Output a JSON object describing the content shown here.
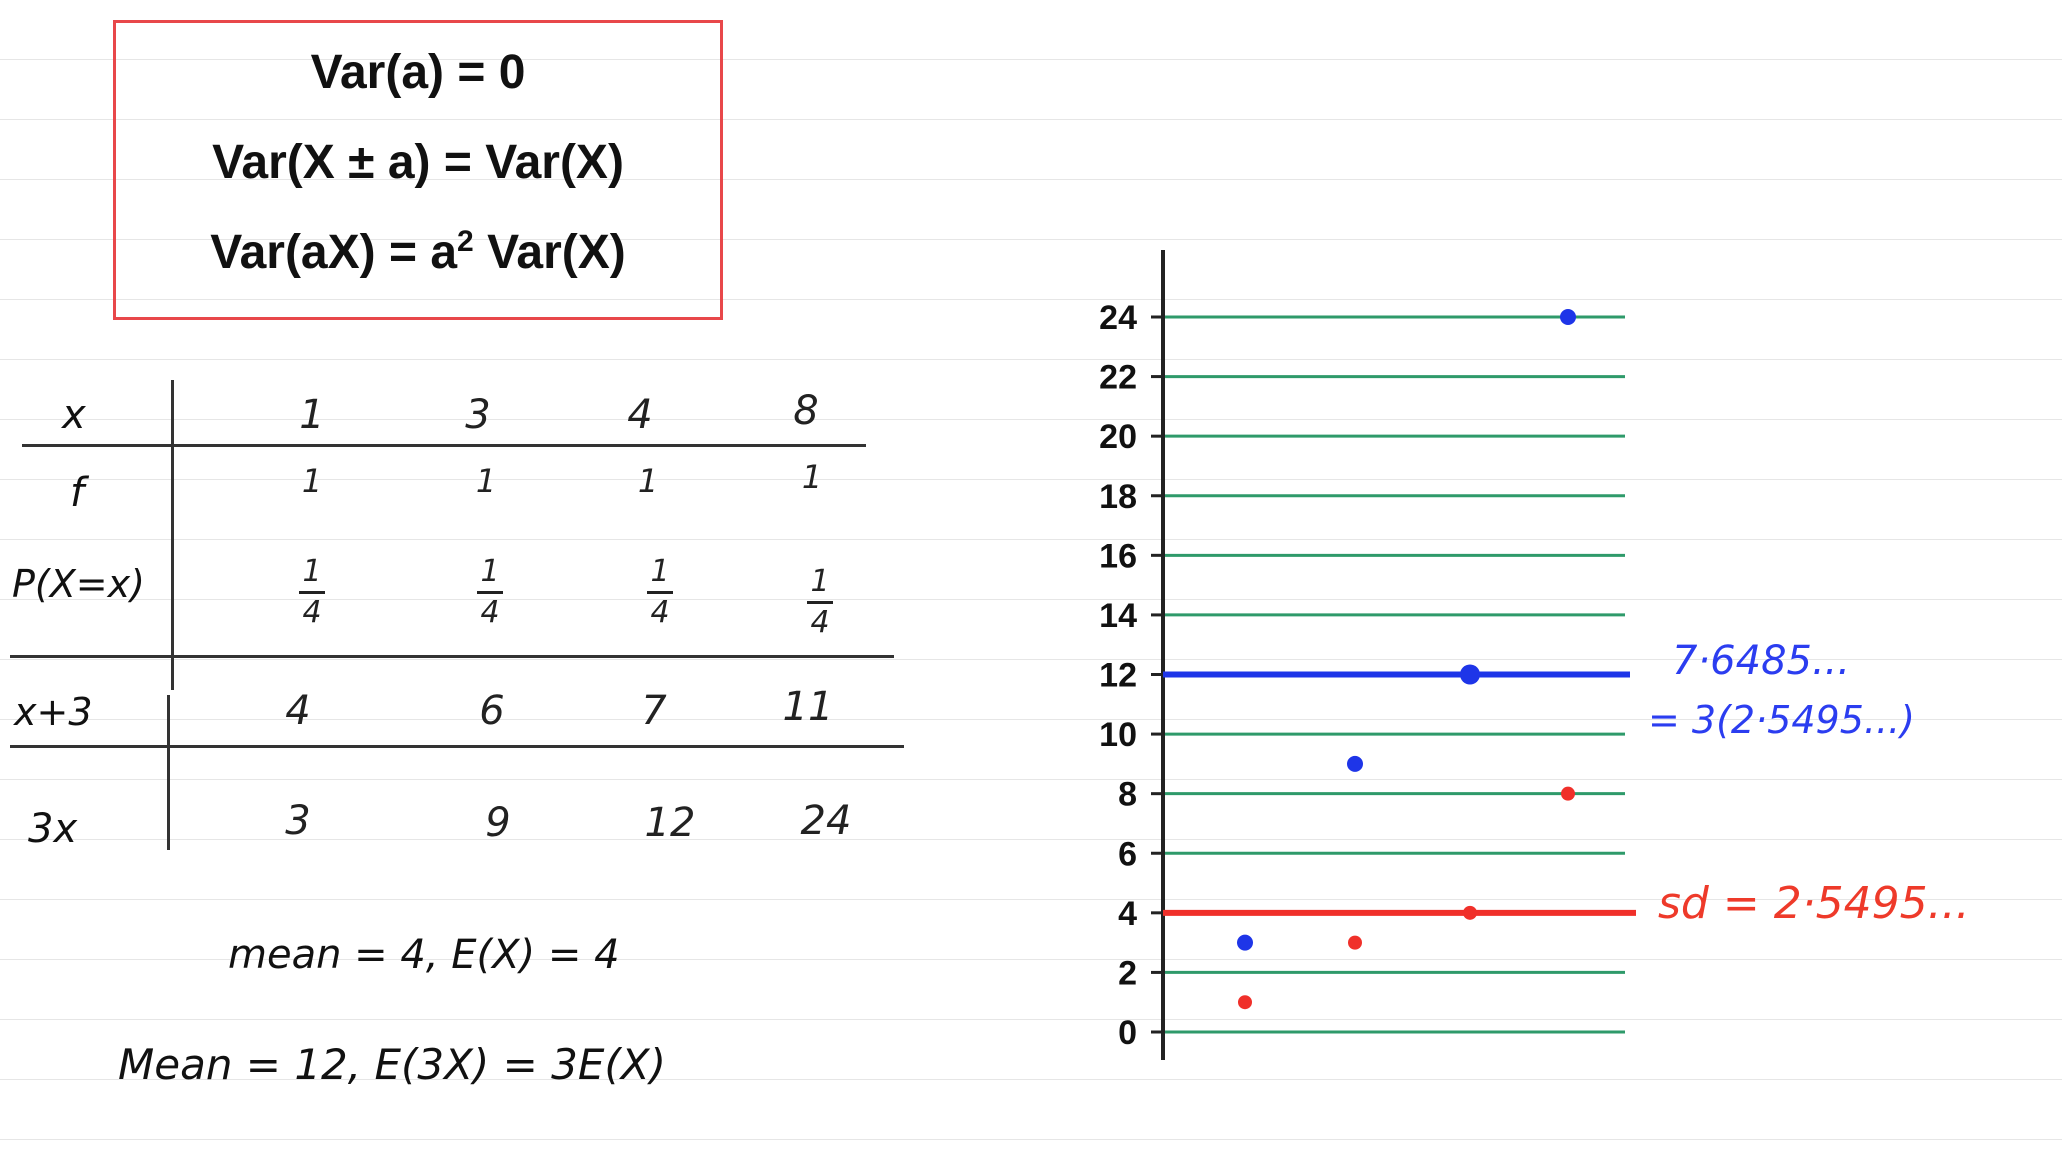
{
  "rules": {
    "line1": "Var(a) = 0",
    "line2": "Var(X ± a) = Var(X)",
    "line3_a": "Var(aX) = a",
    "line3_sup": "2",
    "line3_b": "Var(X)"
  },
  "table": {
    "row_labels": [
      "x",
      "f",
      "P(X=x)",
      "x+3",
      "3x"
    ],
    "x": [
      "1",
      "3",
      "4",
      "8"
    ],
    "f": [
      "1",
      "1",
      "1",
      "1"
    ],
    "p_num": [
      "1",
      "1",
      "1",
      "1"
    ],
    "p_den": [
      "4",
      "4",
      "4",
      "4"
    ],
    "x_plus_3": [
      "4",
      "6",
      "7",
      "11"
    ],
    "three_x": [
      "3",
      "9",
      "12",
      "24"
    ]
  },
  "notes": {
    "mean1": "mean = 4,  E(X) = 4",
    "mean2": "Mean = 12,  E(3X) = 3E(X)",
    "blue1": "7·6485...",
    "blue2": "= 3(2·5495...)",
    "red1": "sd = 2·5495..."
  },
  "colors": {
    "box": "#e8474a",
    "grid": "#2e9a6a",
    "blue": "#1e35e8",
    "red": "#f0302a"
  },
  "chart_data": {
    "type": "scatter",
    "y_ticks": [
      "0",
      "2",
      "4",
      "6",
      "8",
      "10",
      "12",
      "14",
      "16",
      "18",
      "20",
      "22",
      "24"
    ],
    "ylim": [
      0,
      24
    ],
    "grid": true,
    "series": [
      {
        "color": "blue",
        "points": [
          [
            1,
            3
          ],
          [
            2,
            9
          ],
          [
            3,
            12
          ],
          [
            4,
            24
          ]
        ]
      },
      {
        "color": "red",
        "points": [
          [
            1,
            1
          ],
          [
            2,
            3
          ],
          [
            3,
            4
          ],
          [
            4,
            8
          ]
        ]
      }
    ],
    "reference_lines": [
      {
        "color": "blue",
        "y": 12
      },
      {
        "color": "red",
        "y": 4
      }
    ]
  }
}
